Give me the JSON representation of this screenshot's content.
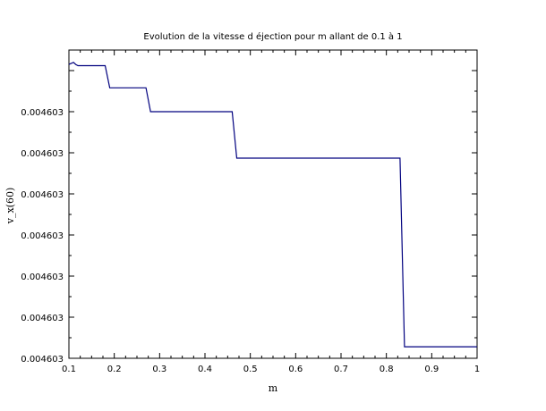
{
  "chart_data": {
    "type": "line",
    "title": "Evolution de la vitesse d éjection pour m allant de 0.1 à 1",
    "xlabel": "m",
    "ylabel": "v_x(60)",
    "xlim": [
      0.1,
      1.0
    ],
    "ylim": [
      0.0,
      7.5
    ],
    "grid": false,
    "x_ticks": [
      "0.1",
      "0.2",
      "0.3",
      "0.4",
      "0.5",
      "0.6",
      "0.7",
      "0.8",
      "0.9",
      "1"
    ],
    "y_ticks": [
      {
        "value": 0,
        "label": "0.004603"
      },
      {
        "value": 1,
        "label": "0.004603"
      },
      {
        "value": 2,
        "label": "0.004603"
      },
      {
        "value": 3,
        "label": "0.004603"
      },
      {
        "value": 4,
        "label": "0.004603"
      },
      {
        "value": 5,
        "label": "0.004603"
      },
      {
        "value": 6,
        "label": "0.004603"
      }
    ],
    "series": [
      {
        "color": "#00007f",
        "x": [
          0.1,
          0.11,
          0.115,
          0.12,
          0.18,
          0.19,
          0.27,
          0.28,
          0.46,
          0.47,
          0.83,
          0.84,
          1.0
        ],
        "y": [
          7.15,
          7.2,
          7.15,
          7.12,
          7.12,
          6.58,
          6.58,
          6.0,
          6.0,
          4.87,
          4.87,
          0.28,
          0.28
        ]
      }
    ]
  }
}
